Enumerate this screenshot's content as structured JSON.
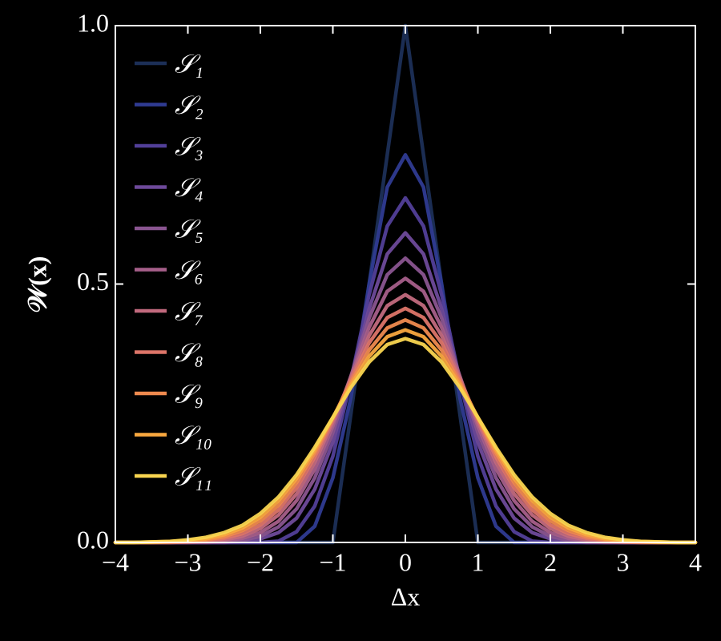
{
  "chart_data": {
    "type": "line",
    "xlabel": "Δx",
    "ylabel": "𝒲(x)",
    "x": [
      -4,
      -3.75,
      -3.5,
      -3.25,
      -3,
      -2.75,
      -2.5,
      -2.25,
      -2,
      -1.75,
      -1.5,
      -1.25,
      -1,
      -0.75,
      -0.5,
      -0.25,
      0,
      0.25,
      0.5,
      0.75,
      1,
      1.25,
      1.5,
      1.75,
      2,
      2.25,
      2.5,
      2.75,
      3,
      3.25,
      3.5,
      3.75,
      4
    ],
    "xlim": [
      -4,
      4
    ],
    "xticks": [
      {
        "value": -4,
        "label": "−4"
      },
      {
        "value": -3,
        "label": "−3"
      },
      {
        "value": -2,
        "label": "−2"
      },
      {
        "value": -1,
        "label": "−1"
      },
      0,
      1,
      2,
      3,
      4
    ],
    "ylim": [
      0,
      1
    ],
    "yticks": [
      {
        "value": 0,
        "label": "0.0"
      },
      0.5,
      {
        "value": 1,
        "label": "1.0"
      }
    ],
    "legend": "upper left",
    "series": [
      {
        "name": "𝒮₁",
        "color": "#1c2f57",
        "values": [
          0,
          0,
          0,
          0,
          0,
          0,
          0,
          0,
          0,
          0,
          0,
          0,
          0,
          0.25,
          0.5,
          0.75,
          1,
          0.75,
          0.5,
          0.25,
          0,
          0,
          0,
          0,
          0,
          0,
          0,
          0,
          0,
          0,
          0,
          0,
          0
        ]
      },
      {
        "name": "𝒮₂",
        "color": "#2f3b92",
        "values": [
          0,
          0,
          0,
          0,
          0,
          0,
          0,
          0,
          0,
          0,
          0,
          0.03125,
          0.125,
          0.28125,
          0.5,
          0.6875,
          0.75,
          0.6875,
          0.5,
          0.28125,
          0.125,
          0.03125,
          0,
          0,
          0,
          0,
          0,
          0,
          0,
          0,
          0,
          0,
          0
        ]
      },
      {
        "name": "𝒮₃",
        "color": "#523f99",
        "values": [
          0,
          0,
          0,
          0,
          0,
          0,
          0,
          0,
          0,
          0.0026,
          0.0208,
          0.0703,
          0.1667,
          0.3151,
          0.4792,
          0.612,
          0.6667,
          0.612,
          0.4792,
          0.3151,
          0.1667,
          0.0703,
          0.0208,
          0.0026,
          0,
          0,
          0,
          0,
          0,
          0,
          0,
          0,
          0
        ]
      },
      {
        "name": "𝒮₄",
        "color": "#6e4a9a",
        "values": [
          0,
          0,
          0,
          0,
          0,
          0,
          0,
          0.002,
          0.007,
          0.019,
          0.047,
          0.103,
          0.194,
          0.318,
          0.452,
          0.558,
          0.599,
          0.558,
          0.452,
          0.318,
          0.194,
          0.103,
          0.047,
          0.019,
          0.007,
          0.002,
          0,
          0,
          0,
          0,
          0,
          0,
          0
        ]
      },
      {
        "name": "𝒮₅",
        "color": "#8a5590",
        "values": [
          0,
          0,
          0,
          0,
          0,
          0,
          0.001,
          0.004,
          0.012,
          0.03,
          0.065,
          0.125,
          0.213,
          0.322,
          0.434,
          0.518,
          0.55,
          0.518,
          0.434,
          0.322,
          0.213,
          0.125,
          0.065,
          0.03,
          0.012,
          0.004,
          0.001,
          0,
          0,
          0,
          0,
          0,
          0
        ]
      },
      {
        "name": "𝒮₆",
        "color": "#a65f8a",
        "values": [
          0,
          0,
          0,
          0,
          0,
          0.001,
          0.003,
          0.008,
          0.019,
          0.041,
          0.081,
          0.142,
          0.225,
          0.322,
          0.416,
          0.486,
          0.511,
          0.486,
          0.416,
          0.322,
          0.225,
          0.142,
          0.081,
          0.041,
          0.019,
          0.008,
          0.003,
          0.001,
          0,
          0,
          0,
          0,
          0
        ]
      },
      {
        "name": "𝒮₇",
        "color": "#c26a7e",
        "values": [
          0,
          0,
          0,
          0,
          0.001,
          0.002,
          0.005,
          0.012,
          0.027,
          0.053,
          0.094,
          0.155,
          0.233,
          0.319,
          0.4,
          0.458,
          0.4793,
          0.458,
          0.4,
          0.319,
          0.233,
          0.155,
          0.094,
          0.053,
          0.027,
          0.012,
          0.005,
          0.002,
          0.001,
          0,
          0,
          0,
          0
        ]
      },
      {
        "name": "𝒮₈",
        "color": "#dd7569",
        "values": [
          0,
          0,
          0,
          0,
          0.001,
          0.003,
          0.008,
          0.017,
          0.034,
          0.063,
          0.106,
          0.165,
          0.238,
          0.315,
          0.386,
          0.435,
          0.4529,
          0.435,
          0.386,
          0.315,
          0.238,
          0.165,
          0.106,
          0.063,
          0.034,
          0.017,
          0.008,
          0.003,
          0.001,
          0,
          0,
          0,
          0
        ]
      },
      {
        "name": "𝒮₉",
        "color": "#ef8a4f",
        "values": [
          0,
          0,
          0,
          0.001,
          0.002,
          0.005,
          0.011,
          0.023,
          0.042,
          0.072,
          0.116,
          0.173,
          0.241,
          0.31,
          0.372,
          0.415,
          0.4305,
          0.415,
          0.372,
          0.31,
          0.241,
          0.173,
          0.116,
          0.072,
          0.042,
          0.023,
          0.011,
          0.005,
          0.002,
          0.001,
          0,
          0,
          0
        ]
      },
      {
        "name": "𝒮₁₀",
        "color": "#f9a83f",
        "values": [
          0,
          0,
          0.001,
          0.002,
          0.003,
          0.007,
          0.015,
          0.028,
          0.049,
          0.081,
          0.124,
          0.179,
          0.242,
          0.305,
          0.36,
          0.398,
          0.4112,
          0.398,
          0.36,
          0.305,
          0.242,
          0.179,
          0.124,
          0.081,
          0.049,
          0.028,
          0.015,
          0.007,
          0.003,
          0.002,
          0.001,
          0,
          0
        ]
      },
      {
        "name": "𝒮₁₁",
        "color": "#f9d550",
        "values": [
          0,
          0,
          0.001,
          0.002,
          0.005,
          0.01,
          0.019,
          0.033,
          0.056,
          0.088,
          0.131,
          0.184,
          0.242,
          0.3,
          0.349,
          0.383,
          0.3944,
          0.383,
          0.349,
          0.3,
          0.242,
          0.184,
          0.131,
          0.088,
          0.056,
          0.033,
          0.019,
          0.01,
          0.005,
          0.002,
          0.001,
          0,
          0
        ]
      }
    ]
  }
}
